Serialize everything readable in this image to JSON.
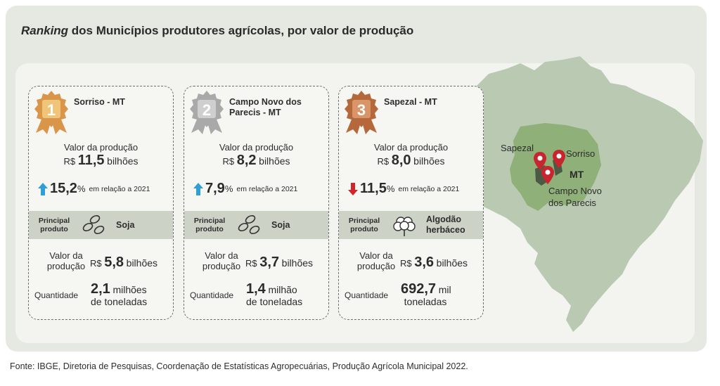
{
  "title": {
    "italic": "Ranking",
    "rest": " dos Municípios produtores agrícolas, por valor de produção"
  },
  "colors": {
    "gold": "#d9954a",
    "silver": "#a9a9a9",
    "bronze": "#b5683c",
    "up_arrow": "#2f9fd8",
    "down_arrow": "#d0262b",
    "map_land": "#b9c9b2",
    "map_mt": "#8fb078",
    "pin": "#c8262f"
  },
  "cards": [
    {
      "rank": "1",
      "medal_color": "gold",
      "place": "Sorriso - MT",
      "value_label": "Valor da produção",
      "currency": "R$",
      "value": "11,5",
      "unit": "bilhões",
      "direction": "up",
      "change": "15,2",
      "pct": "%",
      "relation": "em relação a 2021",
      "product_label": "Principal produto",
      "product_icon": "soy-icon",
      "product": "Soja",
      "prod_value_label": "Valor da produção",
      "prod_value": "5,8",
      "prod_unit": "bilhões",
      "qty_label": "Quantidade",
      "qty_value": "2,1",
      "qty_unit_a": "milhões",
      "qty_unit_b": "de toneladas"
    },
    {
      "rank": "2",
      "medal_color": "silver",
      "place": "Campo Novo dos Parecis - MT",
      "value_label": "Valor da produção",
      "currency": "R$",
      "value": "8,2",
      "unit": "bilhões",
      "direction": "up",
      "change": "7,9",
      "pct": "%",
      "relation": "em relação a 2021",
      "product_label": "Principal produto",
      "product_icon": "soy-icon",
      "product": "Soja",
      "prod_value_label": "Valor da produção",
      "prod_value": "3,7",
      "prod_unit": "bilhões",
      "qty_label": "Quantidade",
      "qty_value": "1,4",
      "qty_unit_a": "milhão",
      "qty_unit_b": "de toneladas"
    },
    {
      "rank": "3",
      "medal_color": "bronze",
      "place": "Sapezal - MT",
      "value_label": "Valor da produção",
      "currency": "R$",
      "value": "8,0",
      "unit": "bilhões",
      "direction": "down",
      "change": "11,5",
      "pct": "%",
      "relation": "em relação a 2021",
      "product_label": "Principal produto",
      "product_icon": "cotton-icon",
      "product": "Algodão herbáceo",
      "prod_value_label": "Valor da produção",
      "prod_value": "3,6",
      "prod_unit": "bilhões",
      "qty_label": "Quantidade",
      "qty_value": "692,7",
      "qty_unit_a": "mil",
      "qty_unit_b": "toneladas"
    }
  ],
  "map": {
    "labels": {
      "sapezal": "Sapezal",
      "sorriso": "Sorriso",
      "state": "MT",
      "campo_novo": "Campo Novo dos Parecis"
    }
  },
  "source": "Fonte: IBGE, Diretoria de Pesquisas, Coordenação de Estatísticas Agropecuárias, Produção Agrícola Municipal 2022."
}
